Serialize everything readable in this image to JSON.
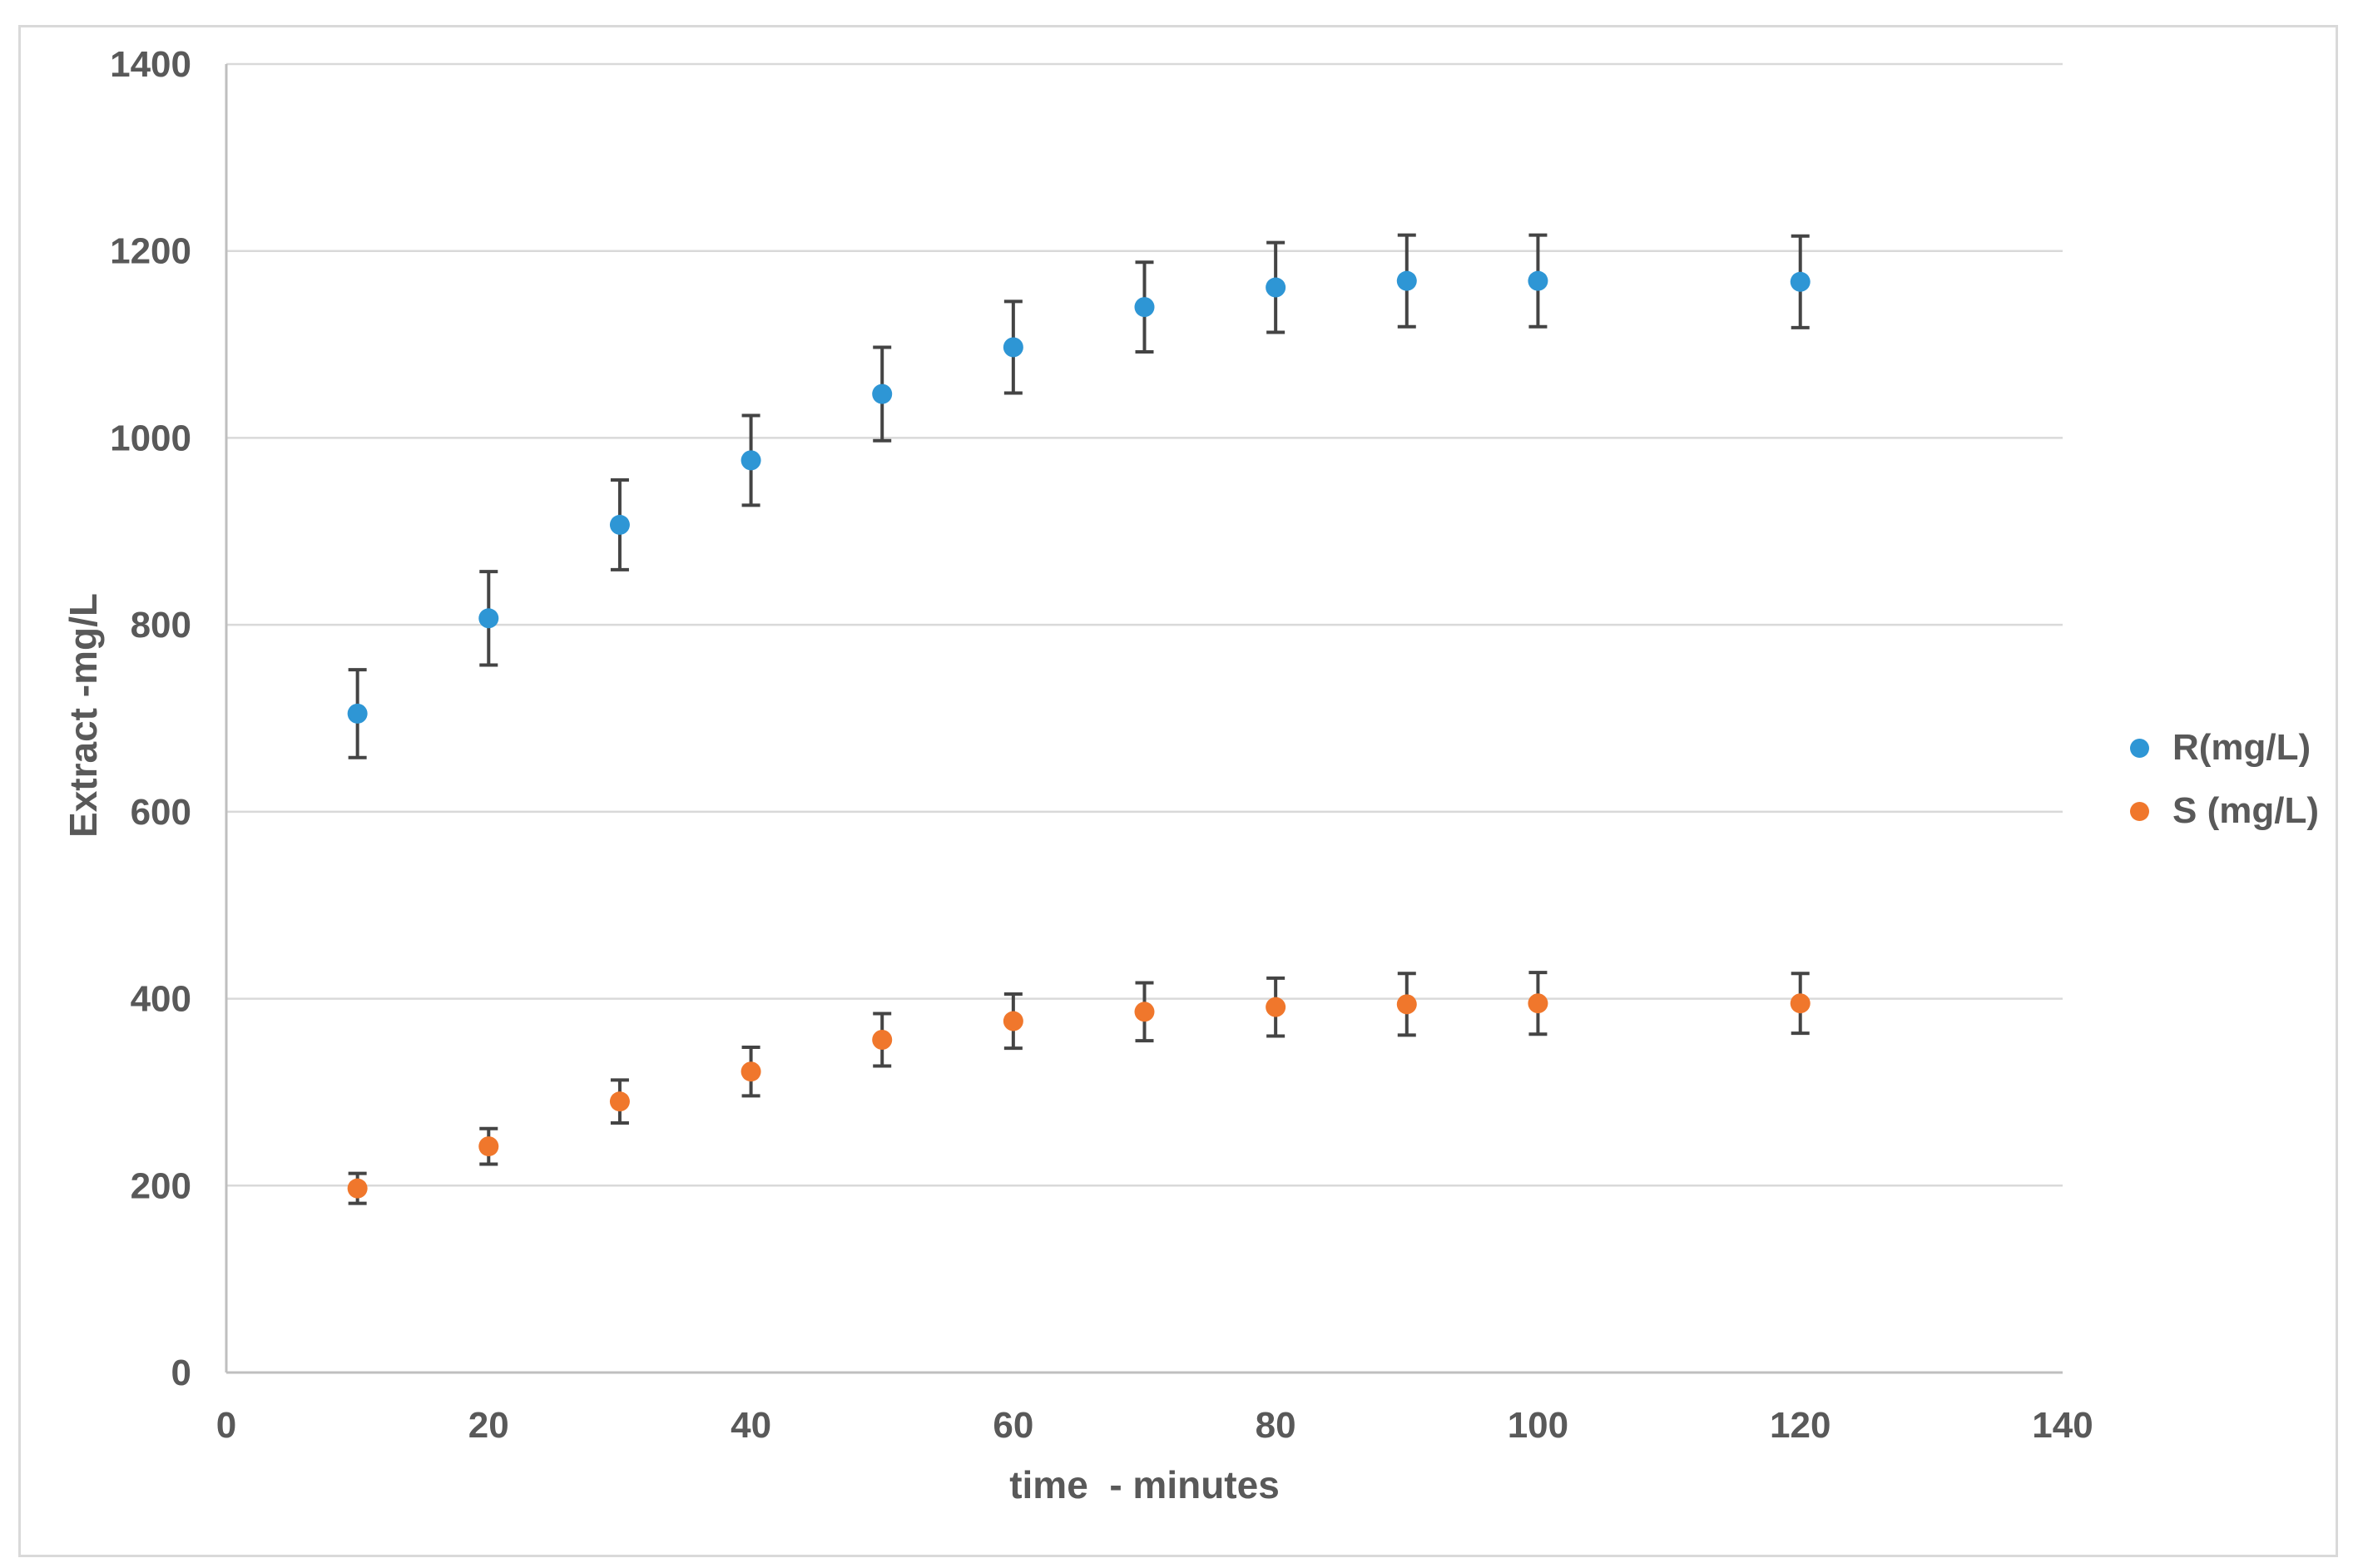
{
  "chart_data": {
    "type": "scatter",
    "title": "",
    "xlabel": "time  - minutes",
    "ylabel": "Extract -mg/L",
    "xlim": [
      0,
      140
    ],
    "ylim": [
      0,
      1400
    ],
    "x_ticks": [
      0,
      20,
      40,
      60,
      80,
      100,
      120,
      140
    ],
    "y_ticks": [
      0,
      200,
      400,
      600,
      800,
      1000,
      1200,
      1400
    ],
    "grid": "horizontal-only",
    "legend_position": "right-middle",
    "error_bars": true,
    "x": [
      10,
      20,
      30,
      40,
      50,
      60,
      70,
      80,
      90,
      100,
      120
    ],
    "series": [
      {
        "name": "R(mg/L)",
        "color": "#2E96D5",
        "values": [
          705,
          807,
          907,
          976,
          1047,
          1097,
          1140,
          1161,
          1168,
          1168,
          1167
        ],
        "errors": [
          47,
          50,
          48,
          48,
          50,
          49,
          48,
          48,
          49,
          49,
          49
        ]
      },
      {
        "name": "S (mg/L)",
        "color": "#F0772C",
        "values": [
          197,
          242,
          290,
          322,
          356,
          376,
          386,
          391,
          394,
          395,
          395
        ],
        "errors": [
          16,
          19,
          23,
          26,
          28,
          29,
          31,
          31,
          33,
          33,
          32
        ]
      }
    ]
  },
  "colors": {
    "text": "#595959",
    "gridline": "#D9D9D9",
    "axis_line": "#BFBFBF",
    "error_bar": "#444444",
    "chart_border": "#D9D9D9",
    "background": "#FFFFFF"
  }
}
